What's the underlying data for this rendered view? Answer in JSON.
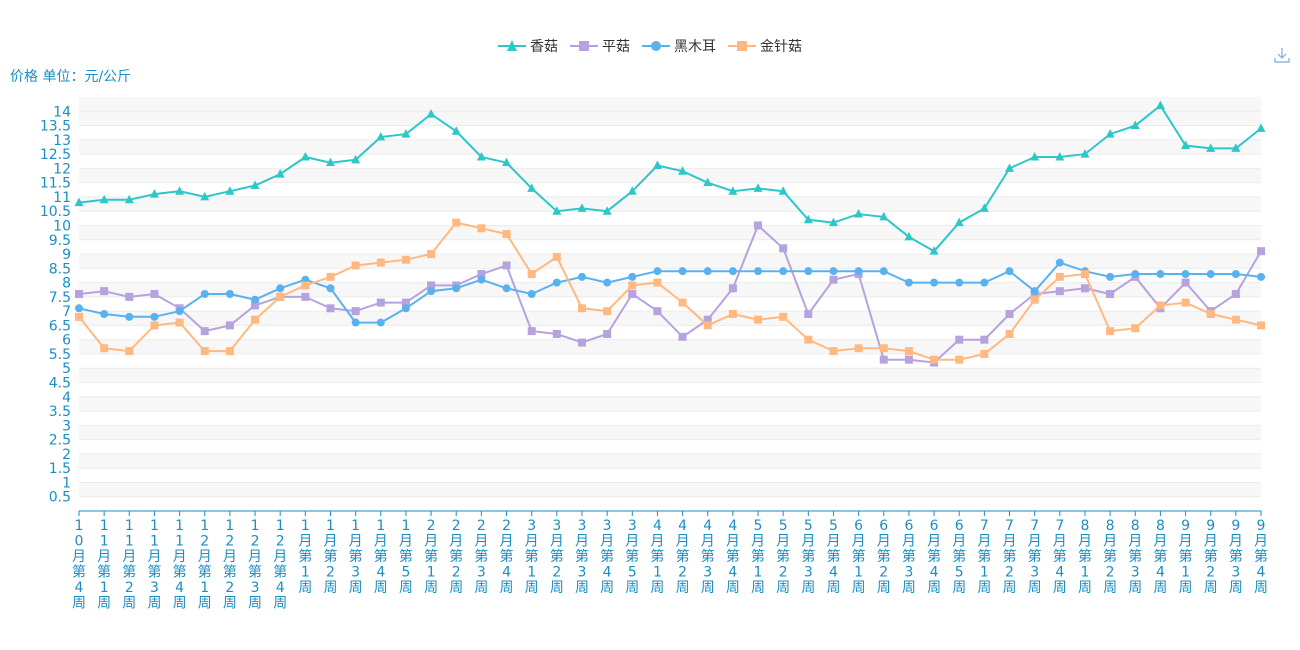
{
  "unit_label": "价格 单位：元/公斤",
  "download_icon": "download-icon",
  "chart_data": {
    "type": "line",
    "categories": [
      "10月第4周",
      "11月第1周",
      "11月第2周",
      "11月第3周",
      "11月第4周",
      "12月第1周",
      "12月第2周",
      "12月第3周",
      "12月第4周",
      "1月第1周",
      "1月第2周",
      "1月第3周",
      "1月第4周",
      "1月第5周",
      "2月第1周",
      "2月第2周",
      "2月第3周",
      "2月第4周",
      "3月第1周",
      "3月第2周",
      "3月第3周",
      "3月第4周",
      "3月第5周",
      "4月第1周",
      "4月第2周",
      "4月第3周",
      "4月第4周",
      "5月第1周",
      "5月第2周",
      "5月第3周",
      "5月第4周",
      "6月第1周",
      "6月第2周",
      "6月第3周",
      "6月第4周",
      "6月第5周",
      "7月第1周",
      "7月第2周",
      "7月第3周",
      "7月第4周",
      "8月第1周",
      "8月第2周",
      "8月第3周",
      "8月第4周",
      "9月第1周",
      "9月第2周",
      "9月第3周",
      "9月第4周"
    ],
    "ylabel": "价格 单位：元/公斤",
    "ylim": [
      0,
      14.5
    ],
    "yticks": [
      "0.5",
      "1",
      "1.5",
      "2",
      "2.5",
      "3",
      "3.5",
      "4",
      "4.5",
      "5",
      "5.5",
      "6",
      "6.5",
      "7",
      "7.5",
      "8",
      "8.5",
      "9",
      "9.5",
      "10",
      "10.5",
      "11",
      "11.5",
      "12",
      "12.5",
      "13",
      "13.5",
      "14"
    ],
    "legend_position": "top",
    "series": [
      {
        "name": "香菇",
        "color": "#2ec7c9",
        "marker": "triangle",
        "values": [
          10.8,
          10.9,
          10.9,
          11.1,
          11.2,
          11.0,
          11.2,
          11.4,
          11.8,
          12.4,
          12.2,
          12.3,
          13.1,
          13.2,
          13.9,
          13.3,
          12.4,
          12.2,
          11.3,
          10.5,
          10.6,
          10.5,
          11.2,
          12.1,
          11.9,
          11.5,
          11.2,
          11.3,
          11.2,
          10.2,
          10.1,
          10.4,
          10.3,
          9.6,
          9.1,
          10.1,
          10.6,
          12.0,
          12.4,
          12.4,
          12.5,
          13.2,
          13.5,
          14.2,
          12.8,
          12.7,
          12.7,
          13.4
        ]
      },
      {
        "name": "平菇",
        "color": "#b6a2de",
        "marker": "square",
        "values": [
          7.6,
          7.7,
          7.5,
          7.6,
          7.1,
          6.3,
          6.5,
          7.2,
          7.5,
          7.5,
          7.1,
          7.0,
          7.3,
          7.3,
          7.9,
          7.9,
          8.3,
          8.6,
          6.3,
          6.2,
          5.9,
          6.2,
          7.6,
          7.0,
          6.1,
          6.7,
          7.8,
          10.0,
          9.2,
          6.9,
          8.1,
          8.3,
          5.3,
          5.3,
          5.2,
          6.0,
          6.0,
          6.9,
          7.6,
          7.7,
          7.8,
          7.6,
          8.2,
          7.1,
          8.0,
          7.0,
          7.6,
          9.1
        ]
      },
      {
        "name": "黑木耳",
        "color": "#5ab1ef",
        "marker": "circle",
        "values": [
          7.1,
          6.9,
          6.8,
          6.8,
          7.0,
          7.6,
          7.6,
          7.4,
          7.8,
          8.1,
          7.8,
          6.6,
          6.6,
          7.1,
          7.7,
          7.8,
          8.1,
          7.8,
          7.6,
          8.0,
          8.2,
          8.0,
          8.2,
          8.4,
          8.4,
          8.4,
          8.4,
          8.4,
          8.4,
          8.4,
          8.4,
          8.4,
          8.4,
          8.0,
          8.0,
          8.0,
          8.0,
          8.4,
          7.7,
          8.7,
          8.4,
          8.2,
          8.3,
          8.3,
          8.3,
          8.3,
          8.3,
          8.2
        ]
      },
      {
        "name": "金针菇",
        "color": "#ffb980",
        "marker": "square",
        "values": [
          6.8,
          5.7,
          5.6,
          6.5,
          6.6,
          5.6,
          5.6,
          6.7,
          7.5,
          7.9,
          8.2,
          8.6,
          8.7,
          8.8,
          9.0,
          10.1,
          9.9,
          9.7,
          8.3,
          8.9,
          7.1,
          7.0,
          7.9,
          8.0,
          7.3,
          6.5,
          6.9,
          6.7,
          6.8,
          6.0,
          5.6,
          5.7,
          5.7,
          5.6,
          5.3,
          5.3,
          5.5,
          6.2,
          7.4,
          8.2,
          8.3,
          6.3,
          6.4,
          7.2,
          7.3,
          6.9,
          6.7,
          6.5
        ]
      }
    ]
  }
}
